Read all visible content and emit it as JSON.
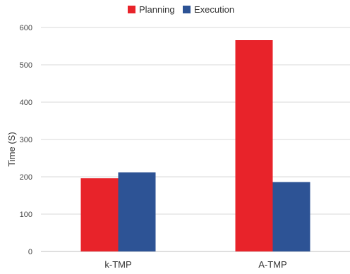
{
  "chart_data": {
    "type": "bar",
    "categories": [
      "k-TMP",
      "A-TMP"
    ],
    "series": [
      {
        "name": "Planning",
        "values": [
          196,
          566
        ],
        "color": "#e8232a"
      },
      {
        "name": "Execution",
        "values": [
          212,
          186
        ],
        "color": "#2d5395"
      }
    ],
    "xlabel": "",
    "ylabel": "Time (S)",
    "ylim": [
      0,
      600
    ],
    "yticks": [
      0,
      100,
      200,
      300,
      400,
      500,
      600
    ],
    "grid": true,
    "legend": "top-center"
  }
}
